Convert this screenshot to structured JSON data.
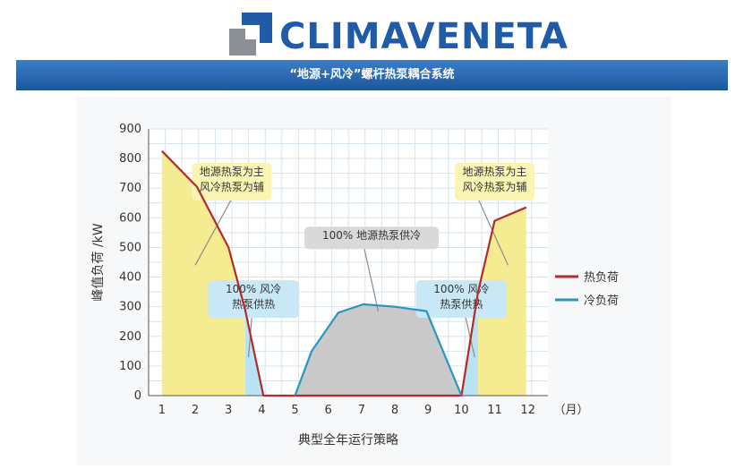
{
  "brand": {
    "name": "CLIMAVENETA",
    "colors": {
      "blue": "#1f5ba6",
      "gray": "#8b9096"
    }
  },
  "banner": {
    "title": "“地源+风冷”螺杆热泵耦合系统"
  },
  "chart_data": {
    "type": "line",
    "xlabel": "典型全年运行策略",
    "ylabel": "峰值负荷 /kW",
    "x_unit": "（月）",
    "x_ticks": [
      1,
      2,
      3,
      4,
      5,
      6,
      7,
      8,
      9,
      10,
      11,
      12
    ],
    "y_ticks": [
      0,
      100,
      200,
      300,
      400,
      500,
      600,
      700,
      800,
      900
    ],
    "xlim": [
      0.6,
      12.6
    ],
    "ylim": [
      0,
      900
    ],
    "grid": true,
    "legend_position": "right",
    "series": [
      {
        "name": "热负荷",
        "color": "#b22a2a",
        "points": [
          [
            1,
            825
          ],
          [
            2.05,
            705
          ],
          [
            3,
            500
          ],
          [
            3.5,
            290
          ],
          [
            4.05,
            0
          ],
          [
            10,
            0
          ],
          [
            10.5,
            350
          ],
          [
            11,
            590
          ],
          [
            11.95,
            635
          ]
        ]
      },
      {
        "name": "冷负荷",
        "color": "#2a96c0",
        "points": [
          [
            5,
            0
          ],
          [
            5.5,
            150
          ],
          [
            6.3,
            280
          ],
          [
            7.05,
            308
          ],
          [
            8,
            300
          ],
          [
            8.95,
            285
          ],
          [
            10,
            0
          ]
        ]
      }
    ],
    "regions": [
      {
        "kind": "ground-heat",
        "color": "#f5ec91",
        "points": [
          [
            1,
            825
          ],
          [
            2.05,
            705
          ],
          [
            3,
            500
          ],
          [
            3.5,
            290
          ],
          [
            3.5,
            0
          ],
          [
            1,
            0
          ]
        ]
      },
      {
        "kind": "air-heat",
        "color": "#b9e2f3",
        "points": [
          [
            3.5,
            290
          ],
          [
            4.05,
            0
          ],
          [
            3.5,
            0
          ]
        ]
      },
      {
        "kind": "ground-cool",
        "color": "#c9c9c9",
        "points": [
          [
            5,
            0
          ],
          [
            5.5,
            150
          ],
          [
            6.3,
            280
          ],
          [
            7.05,
            308
          ],
          [
            8,
            300
          ],
          [
            8.95,
            285
          ],
          [
            10,
            0
          ]
        ]
      },
      {
        "kind": "air-heat",
        "color": "#b9e2f3",
        "points": [
          [
            10,
            0
          ],
          [
            10.5,
            350
          ],
          [
            10.5,
            0
          ]
        ]
      },
      {
        "kind": "ground-heat",
        "color": "#f5ec91",
        "points": [
          [
            10.5,
            350
          ],
          [
            11,
            590
          ],
          [
            11.95,
            635
          ],
          [
            11.95,
            0
          ],
          [
            10.5,
            0
          ]
        ]
      }
    ],
    "annotations": [
      {
        "lines": [
          "地源热泵为主",
          "风冷热泵为辅"
        ],
        "fill": "#fbf5b4",
        "anchor": [
          3.1,
          770
        ],
        "pointer": [
          [
            3.1,
            665
          ],
          [
            2.0,
            440
          ]
        ]
      },
      {
        "lines": [
          "100% 风冷",
          "热泵供热"
        ],
        "fill": "#c8e8f7",
        "anchor": [
          3.75,
          374
        ],
        "pointer": [
          [
            3.75,
            326
          ],
          [
            3.6,
            130
          ]
        ]
      },
      {
        "lines": [
          "100% 地源热泵供冷"
        ],
        "fill": "#d9d9d9",
        "anchor": [
          7.3,
          555
        ],
        "pointer": [
          [
            7.0,
            537
          ],
          [
            7.5,
            285
          ]
        ]
      },
      {
        "lines": [
          "100% 风冷",
          "热泵供热"
        ],
        "fill": "#c8e8f7",
        "anchor": [
          10.0,
          374
        ],
        "pointer": [
          [
            10.0,
            326
          ],
          [
            10.4,
            130
          ]
        ]
      },
      {
        "lines": [
          "地源热泵为主",
          "风冷热泵为辅"
        ],
        "fill": "#fbf5b4",
        "anchor": [
          11.0,
          770
        ],
        "pointer": [
          [
            10.5,
            665
          ],
          [
            11.4,
            440
          ]
        ]
      }
    ]
  }
}
